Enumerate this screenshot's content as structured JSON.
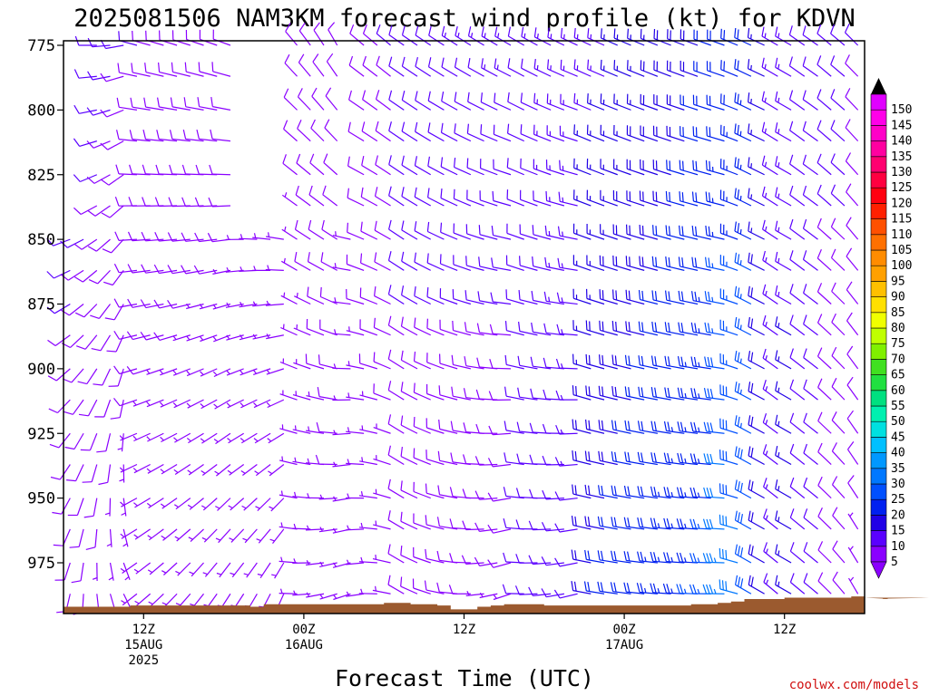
{
  "chart_data": {
    "type": "wind_barb_time_height",
    "title": "2025081506 NAM3KM forecast wind profile (kt) for KDVN",
    "xlabel": "Forecast Time (UTC)",
    "ylabel": "",
    "units": "kt",
    "y_axis": {
      "ticks": [
        "775",
        "800",
        "825",
        "850",
        "875",
        "900",
        "925",
        "950",
        "975"
      ],
      "ylim": [
        775,
        997
      ],
      "levels_hpa": [
        775,
        787,
        800,
        812,
        825,
        837,
        850,
        862,
        875,
        887,
        900,
        912,
        925,
        937,
        950,
        962,
        975,
        987,
        995
      ]
    },
    "x_axis": {
      "ticks": [
        {
          "lines": [
            "12Z",
            "15AUG",
            "2025"
          ],
          "hour": 6
        },
        {
          "lines": [
            "00Z",
            "16AUG"
          ],
          "hour": 18
        },
        {
          "lines": [
            "12Z"
          ],
          "hour": 30
        },
        {
          "lines": [
            "00Z",
            "17AUG"
          ],
          "hour": 42
        },
        {
          "lines": [
            "12Z"
          ],
          "hour": 54
        }
      ],
      "xlim": [
        0,
        60
      ],
      "step_hours": 1
    },
    "terrain": {
      "color": "#9b5a2f",
      "surface_hpa": [
        992,
        992,
        992,
        992,
        992,
        991.5,
        991.5,
        991.5,
        991.5,
        991.5,
        991.5,
        991.5,
        991.5,
        991.5,
        992,
        991,
        991,
        991,
        991,
        991,
        991,
        991,
        991,
        991,
        990.5,
        990.5,
        991,
        991,
        991.5,
        993,
        993,
        992,
        991.5,
        991,
        991,
        991,
        991.5,
        991.5,
        991.5,
        991.5,
        991.5,
        991.5,
        991.5,
        991.5,
        991.5,
        991.5,
        991.5,
        991,
        991,
        990.5,
        990,
        989,
        989,
        989,
        988.5,
        988.5,
        988.5,
        988.5,
        988.5,
        988,
        988.5,
        988.5,
        989,
        989,
        989,
        988.5,
        988.5,
        988.5
      ]
    },
    "segments": [
      {
        "from": 0,
        "to": 5,
        "top": "mid",
        "dir": [
          [
            280,
            260
          ],
          [
            190,
            150
          ]
        ],
        "spd": [
          [
            12,
            10
          ],
          [
            8,
            6
          ]
        ]
      },
      {
        "from": 5,
        "to": 13,
        "top": "top",
        "dir": [
          [
            285,
            290
          ],
          [
            230,
            210
          ]
        ],
        "spd": [
          [
            10,
            9
          ],
          [
            6,
            5
          ]
        ]
      },
      {
        "from": 13,
        "to": 17,
        "top": 850,
        "dir": [
          [
            300,
            320
          ],
          [
            210,
            200
          ]
        ],
        "spd": [
          [
            7,
            8
          ],
          [
            5,
            5
          ]
        ]
      },
      {
        "from": 17,
        "to": 21,
        "top": "top",
        "dir": [
          [
            320,
            330
          ],
          [
            270,
            250
          ]
        ],
        "spd": [
          [
            8,
            9
          ],
          [
            6,
            7
          ]
        ]
      },
      {
        "from": 21,
        "to": 22,
        "top": 850,
        "dir": [
          [
            300,
            300
          ],
          [
            250,
            250
          ]
        ],
        "spd": [
          [
            6,
            6
          ],
          [
            6,
            6
          ]
        ]
      },
      {
        "from": 22,
        "to": 25,
        "top": "top",
        "dir": [
          [
            310,
            310
          ],
          [
            260,
            280
          ]
        ],
        "spd": [
          [
            9,
            10
          ],
          [
            6,
            6
          ]
        ]
      },
      {
        "from": 25,
        "to": 34,
        "top": "top",
        "dir": [
          [
            305,
            300
          ],
          [
            300,
            250
          ]
        ],
        "spd": [
          [
            12,
            13
          ],
          [
            8,
            7
          ]
        ]
      },
      {
        "from": 34,
        "to": 39,
        "top": "top",
        "dir": [
          [
            300,
            295
          ],
          [
            270,
            255
          ]
        ],
        "spd": [
          [
            12,
            14
          ],
          [
            10,
            12
          ]
        ]
      },
      {
        "from": 39,
        "to": 49,
        "top": "top",
        "dir": [
          [
            295,
            290
          ],
          [
            280,
            270
          ]
        ],
        "spd": [
          [
            14,
            20
          ],
          [
            20,
            26
          ]
        ]
      },
      {
        "from": 49,
        "to": 52,
        "top": "top",
        "dir": [
          [
            290,
            295
          ],
          [
            270,
            300
          ]
        ],
        "spd": [
          [
            20,
            22
          ],
          [
            34,
            30
          ]
        ]
      },
      {
        "from": 52,
        "to": 54,
        "top": "top",
        "dir": [
          [
            295,
            300
          ],
          [
            300,
            310
          ]
        ],
        "spd": [
          [
            16,
            14
          ],
          [
            20,
            14
          ]
        ]
      },
      {
        "from": 54,
        "to": 56,
        "top": "top",
        "dir": [
          [
            300,
            305
          ],
          [
            300,
            310
          ]
        ],
        "spd": [
          [
            14,
            12
          ],
          [
            16,
            12
          ]
        ]
      },
      {
        "from": 56,
        "to": 58,
        "top": "top",
        "dir": [
          [
            305,
            310
          ],
          [
            310,
            315
          ]
        ],
        "spd": [
          [
            12,
            11
          ],
          [
            10,
            8
          ]
        ]
      },
      {
        "from": 58,
        "to": 60,
        "top": "top",
        "dir": [
          [
            310,
            315
          ],
          [
            320,
            330
          ]
        ],
        "spd": [
          [
            11,
            10
          ],
          [
            8,
            7
          ]
        ]
      }
    ],
    "colorbar": {
      "levels": [
        5,
        10,
        15,
        20,
        25,
        30,
        35,
        40,
        45,
        50,
        55,
        60,
        65,
        70,
        75,
        80,
        85,
        90,
        95,
        100,
        105,
        110,
        115,
        120,
        125,
        130,
        135,
        140,
        145,
        150
      ],
      "labels": [
        "5",
        "10",
        "15",
        "20",
        "25",
        "30",
        "35",
        "40",
        "45",
        "50",
        "55",
        "60",
        "65",
        "70",
        "75",
        "80",
        "85",
        "90",
        "95",
        "100",
        "105",
        "110",
        "115",
        "120",
        "125",
        "130",
        "135",
        "140",
        "145",
        "150"
      ],
      "colors": [
        "#8a00ff",
        "#5a00ff",
        "#2000e6",
        "#0020f0",
        "#0050ff",
        "#0078ff",
        "#0098ff",
        "#00c0ff",
        "#00e0e0",
        "#00f0b0",
        "#00e080",
        "#20e040",
        "#40e020",
        "#80f000",
        "#c0ff00",
        "#f0ff00",
        "#ffe000",
        "#ffc000",
        "#ffa000",
        "#ff8c00",
        "#ff7000",
        "#ff5000",
        "#ff2000",
        "#ff0010",
        "#ff0040",
        "#ff0070",
        "#ff00a0",
        "#ff00c8",
        "#ff00e8",
        "#e000ff"
      ]
    }
  },
  "credit": "coolwx.com/models"
}
